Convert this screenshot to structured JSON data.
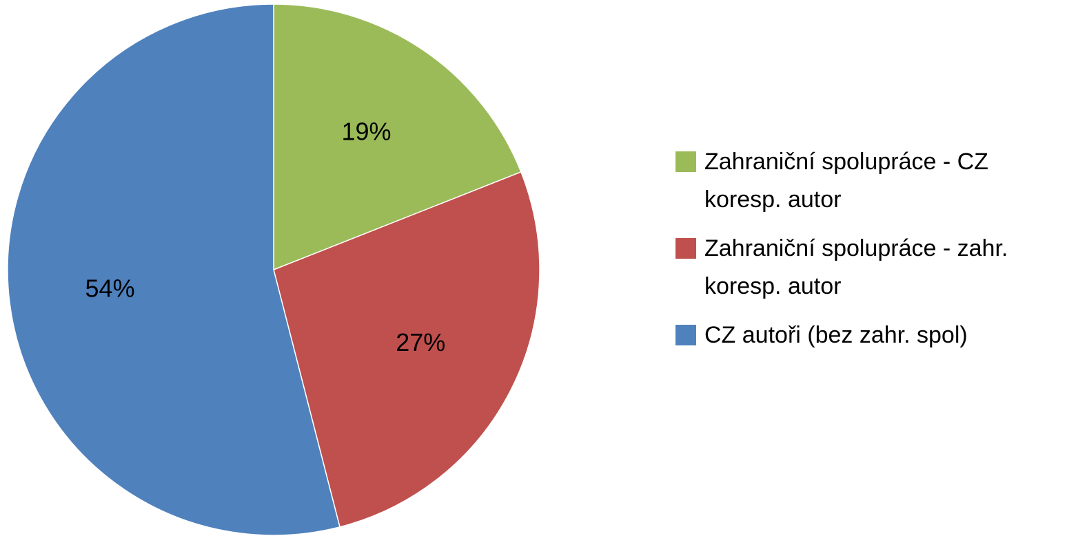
{
  "chart_data": {
    "type": "pie",
    "categories": [
      "Zahraniční spolupráce - CZ koresp. autor",
      "Zahraniční spolupráce - zahr. koresp. autor",
      "CZ autoři (bez zahr. spol)"
    ],
    "values": [
      19,
      27,
      54
    ],
    "value_labels": [
      "19%",
      "27%",
      "54%"
    ],
    "colors": [
      "#9bbb59",
      "#c0504d",
      "#4f81bd"
    ],
    "legend": "right"
  }
}
